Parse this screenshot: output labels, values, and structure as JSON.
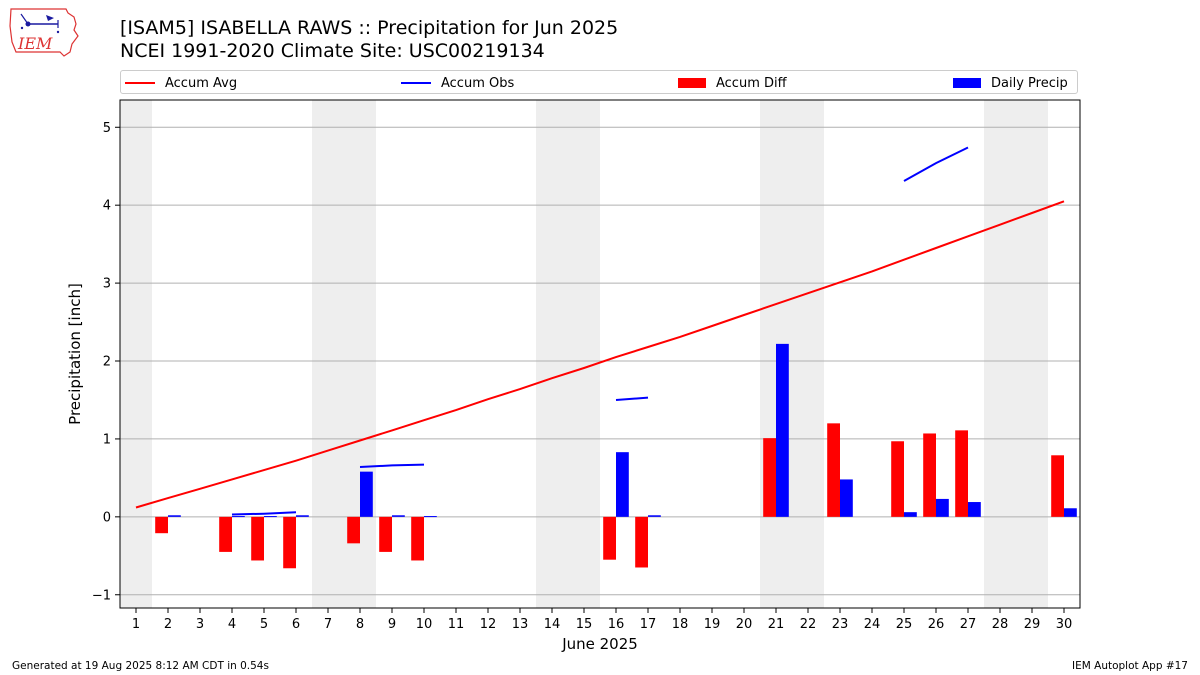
{
  "header": {
    "logo_text": "IEM",
    "title": "[ISAM5] ISABELLA RAWS :: Precipitation for Jun 2025",
    "subtitle": "NCEI 1991-2020 Climate Site: USC00219134"
  },
  "footer": {
    "left": "Generated at 19 Aug 2025 8:12 AM CDT in 0.54s",
    "right": "IEM Autoplot App #17"
  },
  "colors": {
    "accum_avg": "#ff0000",
    "accum_obs": "#0000ff",
    "accum_diff": "#ff0000",
    "daily_precip": "#0000ff",
    "weekend_shade": "#eeeeee",
    "grid": "#b0b0b0"
  },
  "chart_data": {
    "type": "bar",
    "xlabel": "June 2025",
    "ylabel": "Precipitation [inch]",
    "xlim": [
      0.5,
      30.5
    ],
    "ylim": [
      -1.17,
      5.35
    ],
    "yticks": [
      -1,
      0,
      1,
      2,
      3,
      4,
      5
    ],
    "grid": "horizontal",
    "legend_placement": "top",
    "days": [
      1,
      2,
      3,
      4,
      5,
      6,
      7,
      8,
      9,
      10,
      11,
      12,
      13,
      14,
      15,
      16,
      17,
      18,
      19,
      20,
      21,
      22,
      23,
      24,
      25,
      26,
      27,
      28,
      29,
      30
    ],
    "weekend_spans": [
      [
        0.5,
        1.5
      ],
      [
        6.5,
        8.5
      ],
      [
        13.5,
        15.5
      ],
      [
        20.5,
        22.5
      ],
      [
        27.5,
        29.5
      ]
    ],
    "series": [
      {
        "name": "Accum Avg",
        "kind": "line",
        "values": [
          0.12,
          0.24,
          0.36,
          0.48,
          0.6,
          0.72,
          0.85,
          0.98,
          1.11,
          1.24,
          1.37,
          1.51,
          1.64,
          1.78,
          1.91,
          2.05,
          2.18,
          2.31,
          2.45,
          2.59,
          2.73,
          2.87,
          3.01,
          3.15,
          3.3,
          3.45,
          3.6,
          3.75,
          3.9,
          4.05
        ]
      },
      {
        "name": "Accum Obs",
        "kind": "line",
        "values": [
          null,
          null,
          null,
          0.03,
          0.04,
          0.06,
          null,
          0.64,
          0.66,
          0.67,
          null,
          null,
          null,
          null,
          null,
          1.5,
          1.53,
          null,
          null,
          null,
          null,
          null,
          null,
          null,
          4.31,
          4.54,
          4.74,
          null,
          null,
          null
        ]
      },
      {
        "name": "Accum Diff",
        "kind": "bar",
        "values": [
          null,
          -0.21,
          null,
          -0.45,
          -0.56,
          -0.66,
          null,
          -0.34,
          -0.45,
          -0.56,
          null,
          null,
          null,
          null,
          null,
          -0.55,
          -0.65,
          null,
          null,
          null,
          1.01,
          null,
          1.2,
          null,
          0.97,
          1.07,
          1.11,
          null,
          null,
          0.79
        ]
      },
      {
        "name": "Daily Precip",
        "kind": "bar",
        "values": [
          null,
          0.02,
          null,
          0.01,
          0.01,
          0.02,
          null,
          0.58,
          0.02,
          0.01,
          null,
          null,
          null,
          null,
          null,
          0.83,
          0.02,
          null,
          null,
          null,
          2.22,
          null,
          0.48,
          null,
          0.06,
          0.23,
          0.19,
          null,
          null,
          0.11
        ]
      }
    ]
  }
}
